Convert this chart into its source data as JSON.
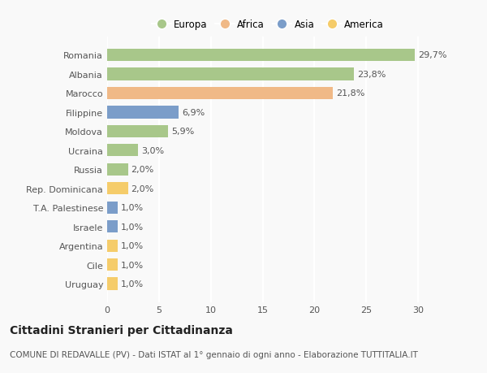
{
  "categories": [
    "Romania",
    "Albania",
    "Marocco",
    "Filippine",
    "Moldova",
    "Ucraina",
    "Russia",
    "Rep. Dominicana",
    "T.A. Palestinese",
    "Israele",
    "Argentina",
    "Cile",
    "Uruguay"
  ],
  "values": [
    29.7,
    23.8,
    21.8,
    6.9,
    5.9,
    3.0,
    2.0,
    2.0,
    1.0,
    1.0,
    1.0,
    1.0,
    1.0
  ],
  "labels": [
    "29,7%",
    "23,8%",
    "21,8%",
    "6,9%",
    "5,9%",
    "3,0%",
    "2,0%",
    "2,0%",
    "1,0%",
    "1,0%",
    "1,0%",
    "1,0%",
    "1,0%"
  ],
  "colors": [
    "#a8c78a",
    "#a8c78a",
    "#f0b987",
    "#7b9dc9",
    "#a8c78a",
    "#a8c78a",
    "#a8c78a",
    "#f5cc6a",
    "#7b9dc9",
    "#7b9dc9",
    "#f5cc6a",
    "#f5cc6a",
    "#f5cc6a"
  ],
  "legend_labels": [
    "Europa",
    "Africa",
    "Asia",
    "America"
  ],
  "legend_colors": [
    "#a8c78a",
    "#f0b987",
    "#7b9dc9",
    "#f5cc6a"
  ],
  "title": "Cittadini Stranieri per Cittadinanza",
  "subtitle": "COMUNE DI REDAVALLE (PV) - Dati ISTAT al 1° gennaio di ogni anno - Elaborazione TUTTITALIA.IT",
  "xlim": [
    0,
    31
  ],
  "xticks": [
    0,
    5,
    10,
    15,
    20,
    25,
    30
  ],
  "background_color": "#f9f9f9",
  "bar_height": 0.65,
  "grid_color": "#ffffff",
  "label_fontsize": 8,
  "tick_fontsize": 8,
  "title_fontsize": 10,
  "subtitle_fontsize": 7.5
}
